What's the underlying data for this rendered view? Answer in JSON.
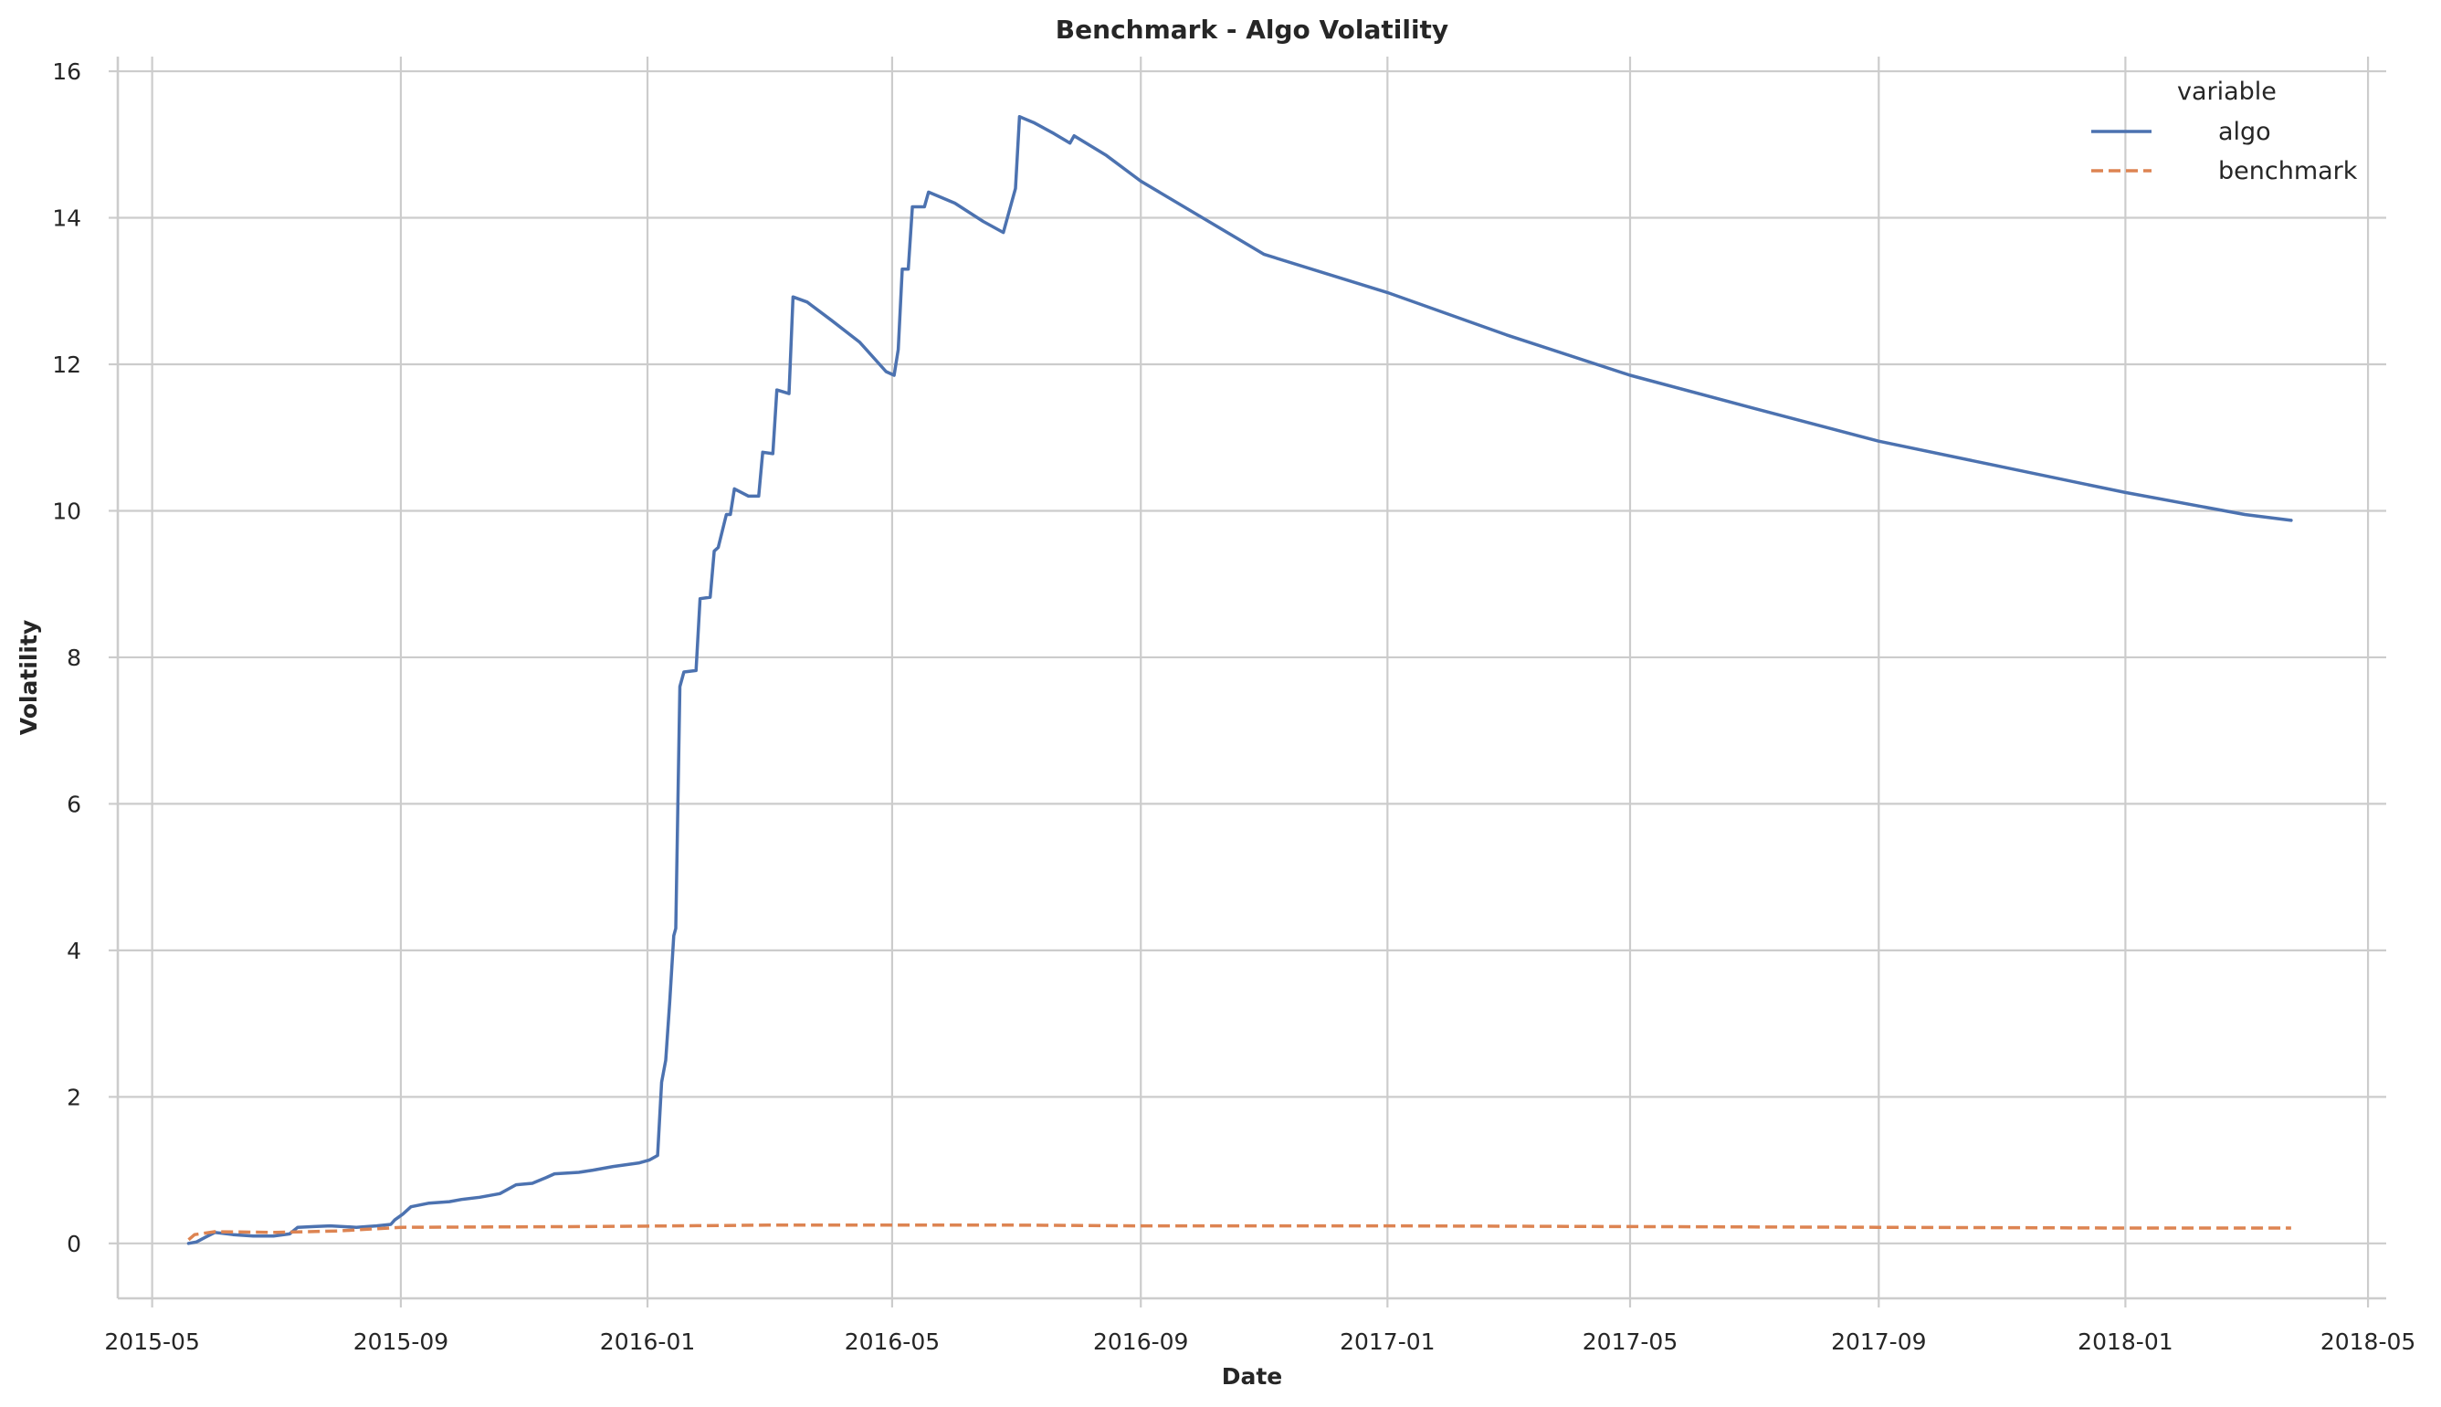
{
  "chart_data": {
    "type": "line",
    "title": "Benchmark - Algo Volatility",
    "xlabel": "Date",
    "ylabel": "Volatility",
    "x_ticks": [
      "2015-05-01",
      "2015-09-01",
      "2016-01-01",
      "2016-05-01",
      "2016-09-01",
      "2017-01-01",
      "2017-05-01",
      "2017-09-01",
      "2018-01-01",
      "2018-05-01"
    ],
    "x_tick_labels": [
      "2015-05",
      "2015-09",
      "2016-01",
      "2016-05",
      "2016-09",
      "2017-01",
      "2017-05",
      "2017-09",
      "2018-01",
      "2018-05"
    ],
    "y_ticks": [
      0,
      2,
      4,
      6,
      8,
      10,
      12,
      14,
      16
    ],
    "y_tick_labels": [
      "0",
      "2",
      "4",
      "6",
      "8",
      "10",
      "12",
      "14",
      "16"
    ],
    "xlim": [
      "2015-04-14",
      "2018-05-10"
    ],
    "ylim": [
      -0.75,
      16.2
    ],
    "grid": true,
    "legend": {
      "title": "variable",
      "position": "top-right"
    },
    "series": [
      {
        "name": "algo",
        "color": "#4c72b0",
        "style": "solid",
        "points": [
          [
            "2015-05-19",
            0.0
          ],
          [
            "2015-05-23",
            0.02
          ],
          [
            "2015-05-27",
            0.08
          ],
          [
            "2015-06-01",
            0.15
          ],
          [
            "2015-06-10",
            0.12
          ],
          [
            "2015-06-20",
            0.1
          ],
          [
            "2015-06-30",
            0.1
          ],
          [
            "2015-07-08",
            0.13
          ],
          [
            "2015-07-12",
            0.22
          ],
          [
            "2015-07-20",
            0.23
          ],
          [
            "2015-07-28",
            0.24
          ],
          [
            "2015-08-10",
            0.22
          ],
          [
            "2015-08-20",
            0.24
          ],
          [
            "2015-08-27",
            0.26
          ],
          [
            "2015-08-29",
            0.32
          ],
          [
            "2015-09-02",
            0.4
          ],
          [
            "2015-09-06",
            0.5
          ],
          [
            "2015-09-15",
            0.55
          ],
          [
            "2015-09-25",
            0.57
          ],
          [
            "2015-10-01",
            0.6
          ],
          [
            "2015-10-10",
            0.63
          ],
          [
            "2015-10-20",
            0.68
          ],
          [
            "2015-10-28",
            0.8
          ],
          [
            "2015-11-05",
            0.82
          ],
          [
            "2015-11-12",
            0.9
          ],
          [
            "2015-11-16",
            0.95
          ],
          [
            "2015-11-28",
            0.97
          ],
          [
            "2015-12-05",
            1.0
          ],
          [
            "2015-12-15",
            1.05
          ],
          [
            "2015-12-28",
            1.1
          ],
          [
            "2016-01-02",
            1.14
          ],
          [
            "2016-01-06",
            1.2
          ],
          [
            "2016-01-08",
            2.2
          ],
          [
            "2016-01-10",
            2.5
          ],
          [
            "2016-01-12",
            3.3
          ],
          [
            "2016-01-14",
            4.2
          ],
          [
            "2016-01-15",
            4.3
          ],
          [
            "2016-01-17",
            7.6
          ],
          [
            "2016-01-19",
            7.8
          ],
          [
            "2016-01-25",
            7.82
          ],
          [
            "2016-01-27",
            8.8
          ],
          [
            "2016-02-01",
            8.82
          ],
          [
            "2016-02-03",
            9.45
          ],
          [
            "2016-02-05",
            9.5
          ],
          [
            "2016-02-09",
            9.95
          ],
          [
            "2016-02-11",
            9.95
          ],
          [
            "2016-02-13",
            10.3
          ],
          [
            "2016-02-20",
            10.2
          ],
          [
            "2016-02-25",
            10.2
          ],
          [
            "2016-02-27",
            10.8
          ],
          [
            "2016-03-03",
            10.78
          ],
          [
            "2016-03-05",
            11.65
          ],
          [
            "2016-03-11",
            11.6
          ],
          [
            "2016-03-13",
            12.92
          ],
          [
            "2016-03-20",
            12.85
          ],
          [
            "2016-04-01",
            12.6
          ],
          [
            "2016-04-15",
            12.3
          ],
          [
            "2016-04-28",
            11.9
          ],
          [
            "2016-05-02",
            11.85
          ],
          [
            "2016-05-04",
            12.2
          ],
          [
            "2016-05-06",
            13.3
          ],
          [
            "2016-05-09",
            13.3
          ],
          [
            "2016-05-11",
            14.15
          ],
          [
            "2016-05-17",
            14.15
          ],
          [
            "2016-05-19",
            14.35
          ],
          [
            "2016-06-01",
            14.2
          ],
          [
            "2016-06-15",
            13.95
          ],
          [
            "2016-06-25",
            13.8
          ],
          [
            "2016-07-01",
            14.4
          ],
          [
            "2016-07-03",
            15.38
          ],
          [
            "2016-07-10",
            15.3
          ],
          [
            "2016-07-20",
            15.15
          ],
          [
            "2016-07-28",
            15.02
          ],
          [
            "2016-07-30",
            15.12
          ],
          [
            "2016-08-15",
            14.85
          ],
          [
            "2016-09-01",
            14.5
          ],
          [
            "2016-11-01",
            13.5
          ],
          [
            "2017-01-01",
            12.98
          ],
          [
            "2017-03-01",
            12.4
          ],
          [
            "2017-05-01",
            11.85
          ],
          [
            "2017-07-01",
            11.4
          ],
          [
            "2017-09-01",
            10.95
          ],
          [
            "2017-11-01",
            10.6
          ],
          [
            "2018-01-01",
            10.25
          ],
          [
            "2018-03-01",
            9.95
          ],
          [
            "2018-03-24",
            9.87
          ]
        ]
      },
      {
        "name": "benchmark",
        "color": "#dd8452",
        "style": "dashed",
        "points": [
          [
            "2015-05-19",
            0.05
          ],
          [
            "2015-05-22",
            0.12
          ],
          [
            "2015-06-01",
            0.16
          ],
          [
            "2015-07-01",
            0.15
          ],
          [
            "2015-08-01",
            0.17
          ],
          [
            "2015-09-01",
            0.22
          ],
          [
            "2015-12-01",
            0.23
          ],
          [
            "2016-03-01",
            0.25
          ],
          [
            "2016-07-01",
            0.25
          ],
          [
            "2016-09-01",
            0.24
          ],
          [
            "2017-01-01",
            0.24
          ],
          [
            "2017-05-01",
            0.23
          ],
          [
            "2017-09-01",
            0.22
          ],
          [
            "2018-01-01",
            0.21
          ],
          [
            "2018-03-24",
            0.21
          ]
        ]
      }
    ]
  }
}
